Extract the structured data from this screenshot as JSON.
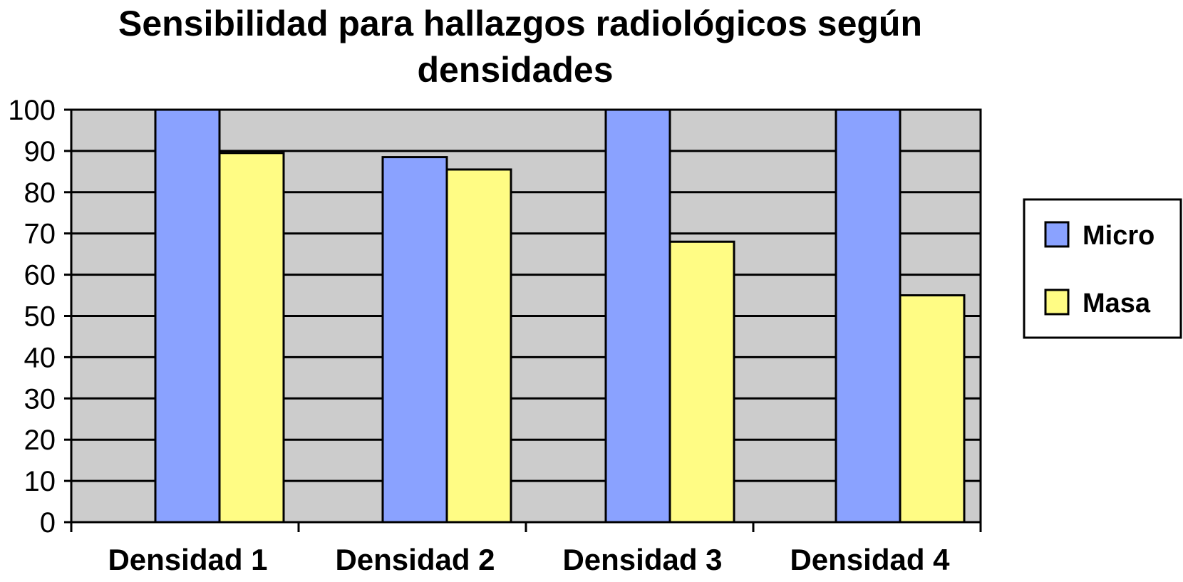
{
  "chart_data": {
    "type": "bar",
    "title_lines": [
      "Sensibilidad para hallazgos radiológicos según",
      "densidades"
    ],
    "categories": [
      "Densidad 1",
      "Densidad 2",
      "Densidad 3",
      "Densidad 4"
    ],
    "series": [
      {
        "name": "Micro",
        "values": [
          100,
          88.5,
          100,
          100
        ],
        "color": "#8aa2ff"
      },
      {
        "name": "Masa",
        "values": [
          89.5,
          85.5,
          68,
          55
        ],
        "color": "#fffc84"
      }
    ],
    "ylim": [
      0,
      100
    ],
    "yticks": [
      "0",
      "10",
      "20",
      "30",
      "40",
      "50",
      "60",
      "70",
      "80",
      "90",
      "100"
    ],
    "xlabel": "",
    "ylabel": "",
    "grid": true,
    "plot_background": "#cccccc",
    "legend_position": "right"
  }
}
